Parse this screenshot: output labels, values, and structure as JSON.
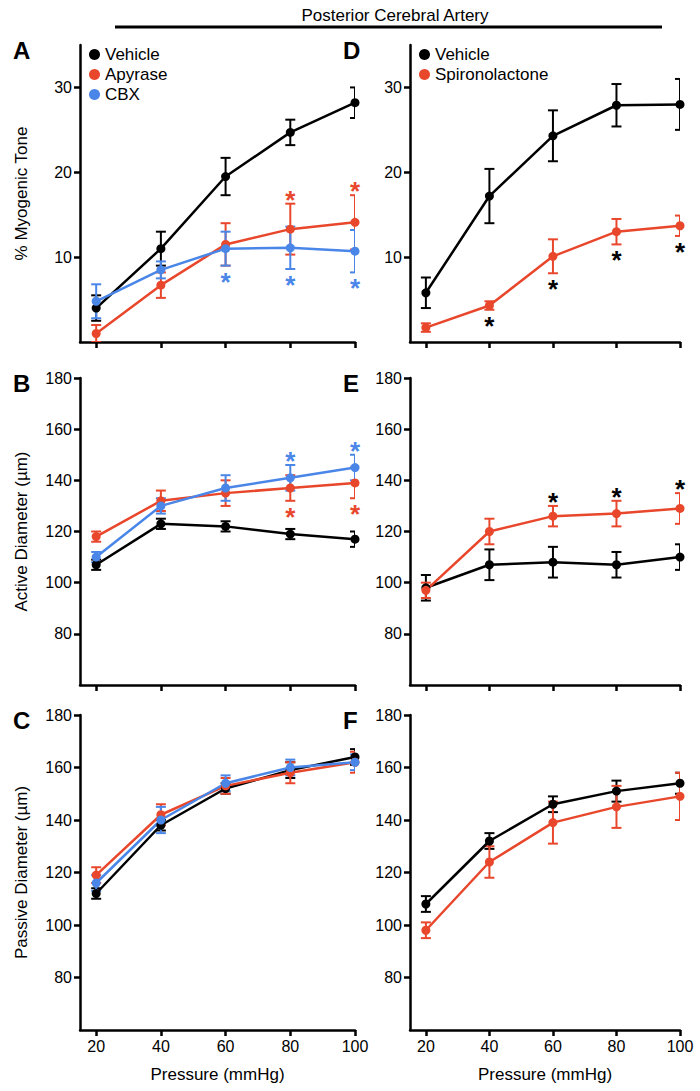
{
  "title": "Posterior Cerebral Artery",
  "chart_data": [
    {
      "type": "line",
      "title": "A",
      "y_label": "% Myogenic Tone",
      "x": [
        20,
        40,
        60,
        80,
        100
      ],
      "xlim": [
        15,
        100
      ],
      "xticks": [
        20,
        40,
        60,
        80,
        100
      ],
      "ylim": [
        0,
        35
      ],
      "yticks": [
        10,
        20,
        30
      ],
      "tick_labels": "y",
      "legend": "upper left",
      "marker": "circle",
      "series": [
        {
          "name": "Vehicle",
          "color": "#000000",
          "values": [
            4.0,
            11.0,
            19.5,
            24.7,
            28.2
          ],
          "errors": [
            1.5,
            2.0,
            2.2,
            1.5,
            1.8
          ]
        },
        {
          "name": "Apyrase",
          "color": "#e8472c",
          "values": [
            1.0,
            6.7,
            11.5,
            13.3,
            14.1
          ],
          "errors": [
            1.0,
            1.5,
            2.5,
            3.0,
            3.2
          ]
        },
        {
          "name": "CBX",
          "color": "#4a86e8",
          "values": [
            4.8,
            8.5,
            11.0,
            11.1,
            10.7
          ],
          "errors": [
            2.0,
            1.0,
            2.0,
            2.5,
            2.5
          ]
        }
      ],
      "annotations": [
        {
          "text": "*",
          "x": 80,
          "series": "Apyrase",
          "color": "#e8472c"
        },
        {
          "text": "*",
          "x": 100,
          "series": "Apyrase",
          "color": "#e8472c"
        },
        {
          "text": "*",
          "x": 60,
          "series": "CBX",
          "color": "#4a86e8"
        },
        {
          "text": "*",
          "x": 80,
          "series": "CBX",
          "color": "#4a86e8"
        },
        {
          "text": "*",
          "x": 100,
          "series": "CBX",
          "color": "#4a86e8"
        }
      ]
    },
    {
      "type": "line",
      "title": "B",
      "y_label": "Active Diameter (µm)",
      "x": [
        20,
        40,
        60,
        80,
        100
      ],
      "xlim": [
        15,
        100
      ],
      "xticks": [
        20,
        40,
        60,
        80,
        100
      ],
      "ylim": [
        60,
        180
      ],
      "yticks": [
        80,
        100,
        120,
        140,
        160,
        180
      ],
      "tick_labels": "y",
      "marker": "circle",
      "series": [
        {
          "name": "Vehicle",
          "color": "#000000",
          "values": [
            107,
            123,
            122,
            119,
            117
          ],
          "errors": [
            2,
            2,
            2,
            2,
            3
          ]
        },
        {
          "name": "Apyrase",
          "color": "#e8472c",
          "values": [
            118,
            132,
            135,
            137,
            139
          ],
          "errors": [
            2,
            4,
            5,
            5,
            6
          ]
        },
        {
          "name": "CBX",
          "color": "#4a86e8",
          "values": [
            110,
            130,
            137,
            141,
            145
          ],
          "errors": [
            2,
            3,
            5,
            5,
            5
          ]
        }
      ],
      "annotations": [
        {
          "text": "*",
          "x": 80,
          "series": "CBX",
          "color": "#4a86e8"
        },
        {
          "text": "*",
          "x": 100,
          "series": "CBX",
          "color": "#4a86e8"
        },
        {
          "text": "*",
          "x": 80,
          "series": "Apyrase",
          "color": "#e8472c"
        },
        {
          "text": "*",
          "x": 100,
          "series": "Apyrase",
          "color": "#e8472c"
        }
      ]
    },
    {
      "type": "line",
      "title": "C",
      "y_label": "Passive Diameter (µm)",
      "x_label": "Pressure (mmHg)",
      "x": [
        20,
        40,
        60,
        80,
        100
      ],
      "xlim": [
        15,
        100
      ],
      "xticks": [
        20,
        40,
        60,
        80,
        100
      ],
      "ylim": [
        60,
        180
      ],
      "yticks": [
        80,
        100,
        120,
        140,
        160,
        180
      ],
      "marker": "circle",
      "series": [
        {
          "name": "Vehicle",
          "color": "#000000",
          "values": [
            112,
            138,
            152,
            159,
            164
          ],
          "errors": [
            2,
            2,
            2,
            3,
            3
          ]
        },
        {
          "name": "Apyrase",
          "color": "#e8472c",
          "values": [
            119,
            142,
            153,
            158,
            162
          ],
          "errors": [
            3,
            4,
            3,
            4,
            4
          ]
        },
        {
          "name": "CBX",
          "color": "#4a86e8",
          "values": [
            116,
            140,
            154,
            160,
            162
          ],
          "errors": [
            3,
            5,
            3,
            3,
            3
          ]
        }
      ]
    },
    {
      "type": "line",
      "title": "D",
      "x": [
        20,
        40,
        60,
        80,
        100
      ],
      "xlim": [
        15,
        100
      ],
      "xticks": [
        20,
        40,
        60,
        80,
        100
      ],
      "ylim": [
        0,
        35
      ],
      "yticks": [
        10,
        20,
        30
      ],
      "tick_labels": "y",
      "legend": "upper left",
      "marker": "circle",
      "series": [
        {
          "name": "Vehicle",
          "color": "#000000",
          "values": [
            5.8,
            17.2,
            24.3,
            27.9,
            28.0
          ],
          "errors": [
            1.8,
            3.2,
            3.0,
            2.5,
            3.0
          ]
        },
        {
          "name": "Spironolactone",
          "color": "#e8472c",
          "values": [
            1.7,
            4.3,
            10.1,
            13.0,
            13.7
          ],
          "errors": [
            0.5,
            0.5,
            2.0,
            1.5,
            1.2
          ]
        }
      ],
      "annotations": [
        {
          "text": "*",
          "x": 40,
          "series": "Spironolactone",
          "color": "#000000"
        },
        {
          "text": "*",
          "x": 60,
          "series": "Spironolactone",
          "color": "#000000"
        },
        {
          "text": "*",
          "x": 80,
          "series": "Spironolactone",
          "color": "#000000"
        },
        {
          "text": "*",
          "x": 100,
          "series": "Spironolactone",
          "color": "#000000"
        }
      ]
    },
    {
      "type": "line",
      "title": "E",
      "x": [
        20,
        40,
        60,
        80,
        100
      ],
      "xlim": [
        15,
        100
      ],
      "xticks": [
        20,
        40,
        60,
        80,
        100
      ],
      "ylim": [
        60,
        180
      ],
      "yticks": [
        80,
        100,
        120,
        140,
        160,
        180
      ],
      "tick_labels": "y",
      "marker": "circle",
      "series": [
        {
          "name": "Vehicle",
          "color": "#000000",
          "values": [
            98,
            107,
            108,
            107,
            110
          ],
          "errors": [
            5,
            6,
            6,
            5,
            5
          ]
        },
        {
          "name": "Spironolactone",
          "color": "#e8472c",
          "values": [
            97,
            120,
            126,
            127,
            129
          ],
          "errors": [
            3,
            5,
            4,
            5,
            6
          ]
        }
      ],
      "annotations": [
        {
          "text": "*",
          "x": 60,
          "series": "Spironolactone",
          "color": "#000000"
        },
        {
          "text": "*",
          "x": 80,
          "series": "Spironolactone",
          "color": "#000000"
        },
        {
          "text": "*",
          "x": 100,
          "series": "Spironolactone",
          "color": "#000000"
        }
      ]
    },
    {
      "type": "line",
      "title": "F",
      "x_label": "Pressure (mmHg)",
      "x": [
        20,
        40,
        60,
        80,
        100
      ],
      "xlim": [
        15,
        100
      ],
      "xticks": [
        20,
        40,
        60,
        80,
        100
      ],
      "ylim": [
        60,
        180
      ],
      "yticks": [
        80,
        100,
        120,
        140,
        160,
        180
      ],
      "marker": "circle",
      "series": [
        {
          "name": "Vehicle",
          "color": "#000000",
          "values": [
            108,
            132,
            146,
            151,
            154
          ],
          "errors": [
            3,
            3,
            3,
            4,
            4
          ]
        },
        {
          "name": "Spironolactone",
          "color": "#e8472c",
          "values": [
            98,
            124,
            139,
            145,
            149
          ],
          "errors": [
            3,
            6,
            8,
            8,
            9
          ]
        }
      ]
    }
  ]
}
